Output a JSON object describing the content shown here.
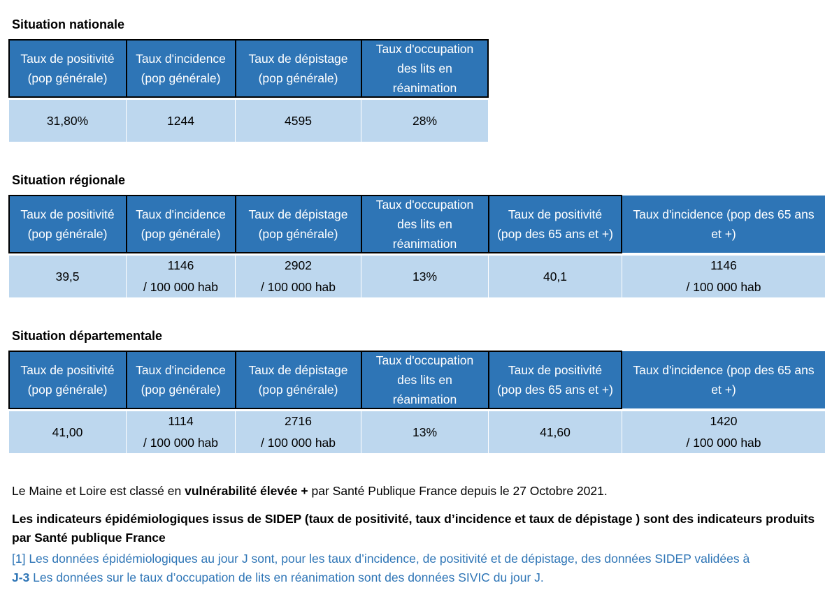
{
  "colors": {
    "header_bg": "#2e75b6",
    "value_bg": "#bdd7ee",
    "link_blue": "#2e75b6"
  },
  "national": {
    "title": "Situation nationale",
    "headers": [
      [
        "Taux de positivité",
        "(pop générale)"
      ],
      [
        "Taux d'incidence",
        "(pop générale)"
      ],
      [
        "Taux de dépistage",
        "(pop générale)"
      ],
      [
        "Taux d'occupation",
        "des lits en",
        "réanimation"
      ]
    ],
    "values": [
      [
        "31,80%"
      ],
      [
        "1244"
      ],
      [
        "4595"
      ],
      [
        "28%"
      ]
    ]
  },
  "regional": {
    "title": "Situation régionale",
    "headers": [
      [
        "Taux de positivité",
        "(pop générale)"
      ],
      [
        "Taux d'incidence",
        "(pop générale)"
      ],
      [
        "Taux de dépistage",
        "(pop générale)"
      ],
      [
        "Taux d'occupation",
        "des lits en",
        "réanimation"
      ],
      [
        "Taux de positivité",
        "(pop des 65 ans et +)"
      ],
      [
        "Taux d'incidence (pop des 65 ans",
        "et +)"
      ]
    ],
    "values": [
      [
        "39,5"
      ],
      [
        "1146",
        "/ 100 000 hab"
      ],
      [
        "2902",
        "/ 100 000 hab"
      ],
      [
        "13%"
      ],
      [
        "40,1"
      ],
      [
        "1146",
        "/ 100 000 hab"
      ]
    ]
  },
  "departmental": {
    "title": "Situation départementale",
    "headers": [
      [
        "Taux de positivité",
        "(pop générale)"
      ],
      [
        "Taux d'incidence",
        "(pop générale)"
      ],
      [
        "Taux de dépistage",
        "(pop générale)"
      ],
      [
        "Taux d'occupation",
        "des lits en",
        "réanimation"
      ],
      [
        "Taux de positivité",
        "(pop des 65 ans et +)"
      ],
      [
        "Taux d'incidence (pop des 65 ans",
        "et +)"
      ]
    ],
    "values": [
      [
        "41,00"
      ],
      [
        "1114",
        "/ 100 000 hab"
      ],
      [
        "2716",
        "/ 100 000 hab"
      ],
      [
        "13%"
      ],
      [
        "41,60"
      ],
      [
        "1420",
        "/ 100 000 hab"
      ]
    ]
  },
  "notes": {
    "vulnerability_pre": "Le Maine et Loire est classé en ",
    "vulnerability_bold": "vulnérabilité élevée +",
    "vulnerability_post": " par Santé Publique France depuis le 27 Octobre 2021.",
    "indicators": "Les indicateurs épidémiologiques issus de SIDEP (taux de positivité, taux d’incidence et taux de dépistage ) sont des indicateurs produits par Santé publique France",
    "footnote_1": "[1] Les données épidémiologiques au jour J sont, pour les taux d’incidence, de positivité et de dépistage, des données SIDEP validées à",
    "footnote_bold": "J-3",
    "footnote_2": " Les données sur le taux d’occupation de lits en réanimation sont des données SIVIC du jour J."
  }
}
